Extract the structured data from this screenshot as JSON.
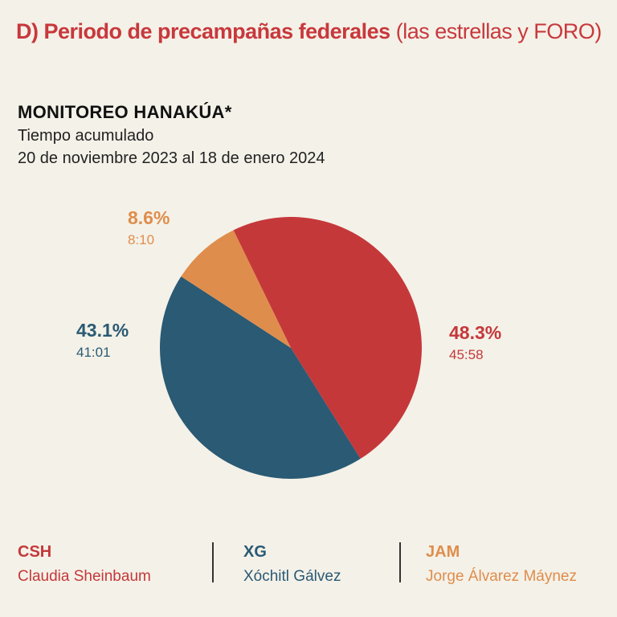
{
  "header": {
    "bold_text": "D) Periodo de precampañas federales",
    "light_text": "(las estrellas y FORO)"
  },
  "title": "MONITOREO HANAKÚA*",
  "subtitle_line1": "Tiempo acumulado",
  "subtitle_line2": "20 de noviembre 2023 al 18 de enero 2024",
  "colors": {
    "background": "#f4f1e8",
    "header": "#c8383c",
    "csh": "#c5383a",
    "xg": "#2a5a74",
    "jam": "#df8d4c"
  },
  "chart_data": {
    "type": "pie",
    "slices": [
      {
        "code": "CSH",
        "name": "Claudia Sheinbaum",
        "value": 48.3,
        "label": "48.3%",
        "time": "45:58",
        "color": "#c5383a"
      },
      {
        "code": "XG",
        "name": "Xóchitl Gálvez",
        "value": 43.1,
        "label": "43.1%",
        "time": "41:01",
        "color": "#2a5a74"
      },
      {
        "code": "JAM",
        "name": "Jorge Álvarez Máynez",
        "value": 8.6,
        "label": "8.6%",
        "time": "8:10",
        "color": "#df8d4c"
      }
    ]
  }
}
